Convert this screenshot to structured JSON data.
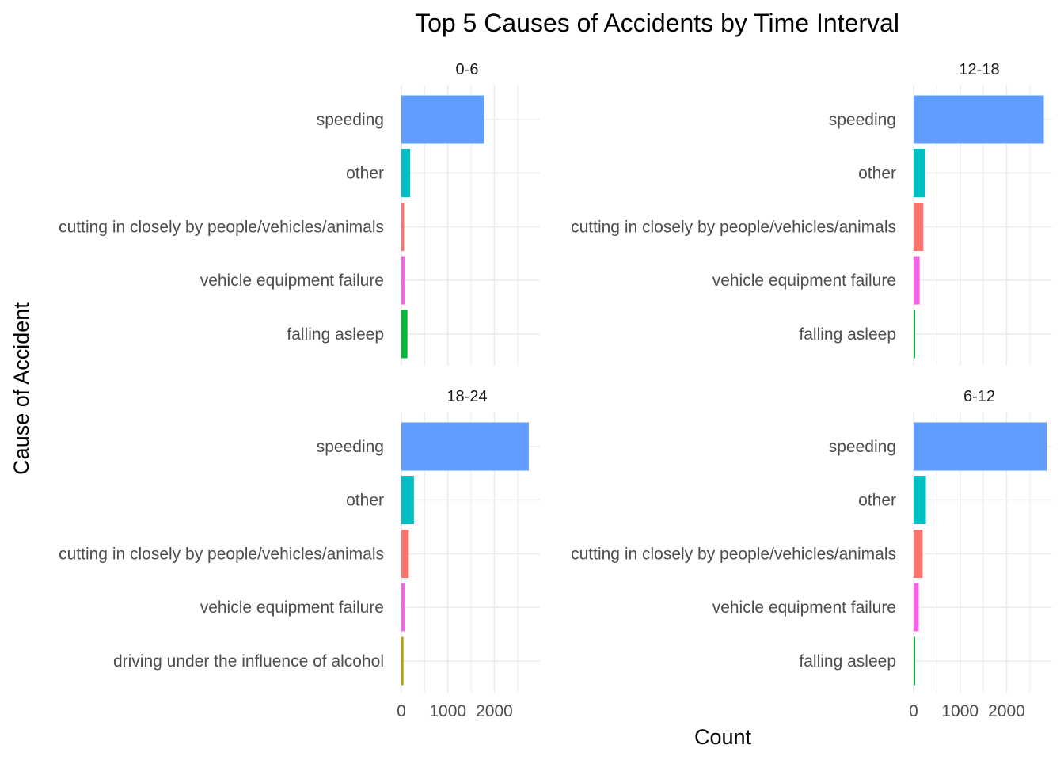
{
  "chart_data": {
    "type": "bar",
    "orientation": "horizontal",
    "title": "Top 5 Causes of Accidents by Time Interval",
    "xlabel": "Count",
    "ylabel": "Cause of Accident",
    "xlim": [
      0,
      2950
    ],
    "x_ticks": [
      0,
      1000,
      2000
    ],
    "grid": true,
    "legend": "none",
    "colors": {
      "speeding": "#619CFF",
      "other": "#00BFC4",
      "cutting in closely by people/vehicles/animals": "#F8766D",
      "vehicle equipment failure": "#F564E3",
      "falling asleep": "#00BA38",
      "driving under the influence of alcohol": "#B79F00"
    },
    "panels": [
      {
        "label": "0-6",
        "categories": [
          "speeding",
          "other",
          "cutting in closely by people/vehicles/animals",
          "vehicle equipment failure",
          "falling asleep"
        ],
        "values": [
          1780,
          190,
          60,
          75,
          130
        ]
      },
      {
        "label": "12-18",
        "categories": [
          "speeding",
          "other",
          "cutting in closely by people/vehicles/animals",
          "vehicle equipment failure",
          "falling asleep"
        ],
        "values": [
          2800,
          245,
          210,
          130,
          25
        ]
      },
      {
        "label": "18-24",
        "categories": [
          "speeding",
          "other",
          "cutting in closely by people/vehicles/animals",
          "vehicle equipment failure",
          "driving under the influence of alcohol"
        ],
        "values": [
          2740,
          270,
          160,
          75,
          45
        ]
      },
      {
        "label": "6-12",
        "categories": [
          "speeding",
          "other",
          "cutting in closely by people/vehicles/animals",
          "vehicle equipment failure",
          "falling asleep"
        ],
        "values": [
          2860,
          265,
          195,
          110,
          25
        ]
      }
    ]
  }
}
